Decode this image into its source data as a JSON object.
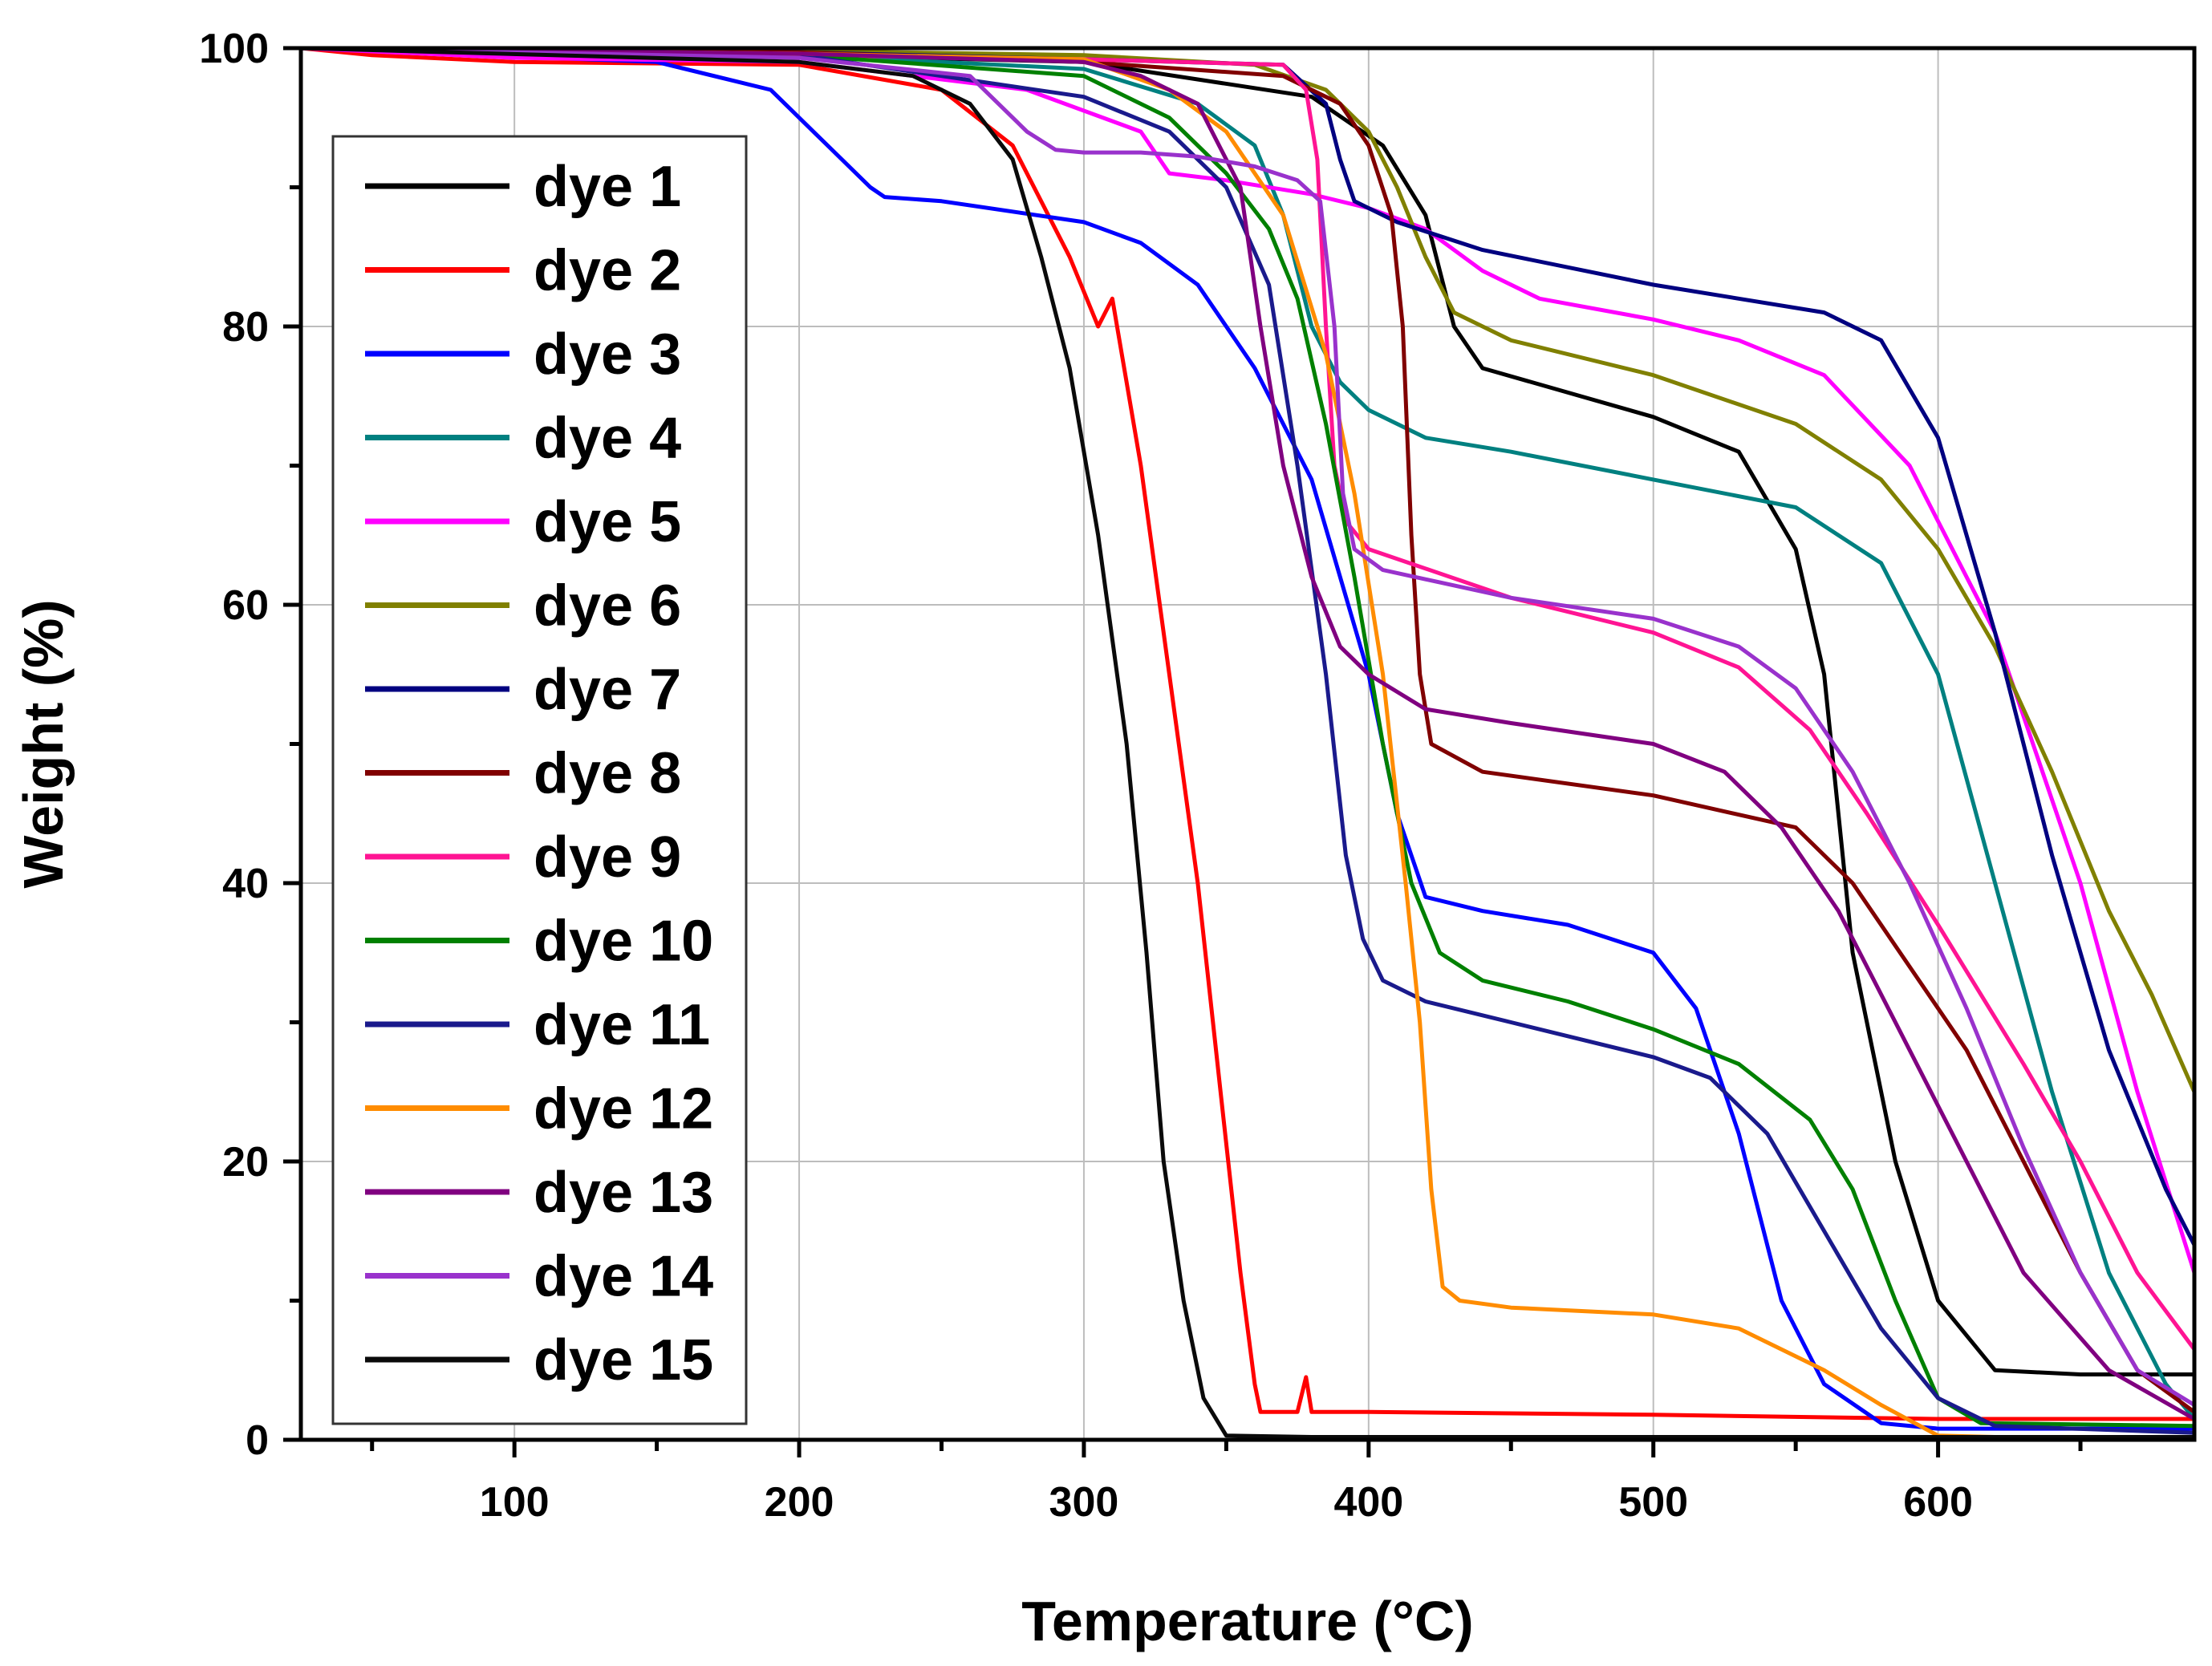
{
  "chart_data": {
    "type": "line",
    "title": "",
    "xlabel": "Temperature (°C)",
    "ylabel": "Weight (%)",
    "xlim": [
      25,
      690
    ],
    "ylim": [
      0,
      100
    ],
    "xticks": [
      100,
      200,
      300,
      400,
      500,
      600
    ],
    "yticks": [
      0,
      20,
      40,
      60,
      80,
      100
    ],
    "grid": true,
    "legend_position": "top-left",
    "series": [
      {
        "name": "dye 1",
        "color": "#000000",
        "points": [
          [
            25,
            100
          ],
          [
            200,
            99.5
          ],
          [
            300,
            99
          ],
          [
            380,
            96.5
          ],
          [
            405,
            93
          ],
          [
            420,
            88
          ],
          [
            430,
            80
          ],
          [
            440,
            77
          ],
          [
            500,
            73.5
          ],
          [
            530,
            71
          ],
          [
            550,
            64
          ],
          [
            560,
            55
          ],
          [
            570,
            35
          ],
          [
            585,
            20
          ],
          [
            600,
            10
          ],
          [
            620,
            5
          ],
          [
            650,
            4.7
          ],
          [
            690,
            4.7
          ]
        ]
      },
      {
        "name": "dye 2",
        "color": "#ff0000",
        "points": [
          [
            25,
            100
          ],
          [
            50,
            99.5
          ],
          [
            100,
            99
          ],
          [
            200,
            98.8
          ],
          [
            250,
            97
          ],
          [
            275,
            93
          ],
          [
            295,
            85
          ],
          [
            305,
            80
          ],
          [
            310,
            82
          ],
          [
            320,
            70
          ],
          [
            330,
            55
          ],
          [
            340,
            40
          ],
          [
            348,
            25
          ],
          [
            355,
            12
          ],
          [
            360,
            4
          ],
          [
            362,
            2
          ],
          [
            375,
            2
          ],
          [
            378,
            4.5
          ],
          [
            380,
            2
          ],
          [
            400,
            2
          ],
          [
            500,
            1.8
          ],
          [
            600,
            1.5
          ],
          [
            690,
            1.5
          ]
        ]
      },
      {
        "name": "dye 3",
        "color": "#0000ff",
        "points": [
          [
            25,
            100
          ],
          [
            150,
            99
          ],
          [
            190,
            97
          ],
          [
            210,
            93
          ],
          [
            225,
            90
          ],
          [
            230,
            89.3
          ],
          [
            250,
            89
          ],
          [
            300,
            87.5
          ],
          [
            320,
            86
          ],
          [
            340,
            83
          ],
          [
            360,
            77
          ],
          [
            380,
            69
          ],
          [
            400,
            55
          ],
          [
            410,
            45
          ],
          [
            420,
            39
          ],
          [
            440,
            38
          ],
          [
            470,
            37
          ],
          [
            500,
            35
          ],
          [
            515,
            31
          ],
          [
            530,
            22
          ],
          [
            545,
            10
          ],
          [
            560,
            4
          ],
          [
            580,
            1.2
          ],
          [
            600,
            0.8
          ],
          [
            690,
            0.8
          ]
        ]
      },
      {
        "name": "dye 4",
        "color": "#008080",
        "points": [
          [
            25,
            100
          ],
          [
            200,
            99.5
          ],
          [
            300,
            98.5
          ],
          [
            340,
            96
          ],
          [
            360,
            93
          ],
          [
            370,
            88
          ],
          [
            380,
            80
          ],
          [
            390,
            76
          ],
          [
            400,
            74
          ],
          [
            420,
            72
          ],
          [
            450,
            71
          ],
          [
            500,
            69
          ],
          [
            550,
            67
          ],
          [
            580,
            63
          ],
          [
            600,
            55
          ],
          [
            620,
            40
          ],
          [
            640,
            25
          ],
          [
            660,
            12
          ],
          [
            680,
            4
          ],
          [
            690,
            1.5
          ]
        ]
      },
      {
        "name": "dye 5",
        "color": "#ff00ff",
        "points": [
          [
            25,
            100
          ],
          [
            100,
            99.3
          ],
          [
            200,
            99
          ],
          [
            280,
            97
          ],
          [
            320,
            94
          ],
          [
            330,
            91
          ],
          [
            350,
            90.5
          ],
          [
            380,
            89.5
          ],
          [
            400,
            88.5
          ],
          [
            420,
            87
          ],
          [
            440,
            84
          ],
          [
            460,
            82
          ],
          [
            500,
            80.5
          ],
          [
            530,
            79
          ],
          [
            560,
            76.5
          ],
          [
            590,
            70
          ],
          [
            620,
            58
          ],
          [
            650,
            40
          ],
          [
            670,
            25
          ],
          [
            690,
            12
          ]
        ]
      },
      {
        "name": "dye 6",
        "color": "#808000",
        "points": [
          [
            25,
            100
          ],
          [
            200,
            99.8
          ],
          [
            300,
            99.5
          ],
          [
            360,
            98.8
          ],
          [
            385,
            97
          ],
          [
            400,
            94
          ],
          [
            410,
            90
          ],
          [
            420,
            85
          ],
          [
            430,
            81
          ],
          [
            450,
            79
          ],
          [
            500,
            76.5
          ],
          [
            550,
            73
          ],
          [
            580,
            69
          ],
          [
            600,
            64
          ],
          [
            620,
            57
          ],
          [
            640,
            48
          ],
          [
            660,
            38
          ],
          [
            675,
            32
          ],
          [
            690,
            25
          ]
        ]
      },
      {
        "name": "dye 7",
        "color": "#000080",
        "points": [
          [
            25,
            100
          ],
          [
            200,
            99.7
          ],
          [
            300,
            99.2
          ],
          [
            370,
            98.8
          ],
          [
            385,
            96
          ],
          [
            390,
            92
          ],
          [
            395,
            89
          ],
          [
            410,
            87.5
          ],
          [
            440,
            85.5
          ],
          [
            500,
            83
          ],
          [
            560,
            81
          ],
          [
            580,
            79
          ],
          [
            600,
            72
          ],
          [
            620,
            58
          ],
          [
            640,
            42
          ],
          [
            660,
            28
          ],
          [
            680,
            18
          ],
          [
            690,
            14
          ]
        ]
      },
      {
        "name": "dye 8",
        "color": "#800000",
        "points": [
          [
            25,
            100
          ],
          [
            200,
            99.7
          ],
          [
            300,
            99
          ],
          [
            370,
            98
          ],
          [
            390,
            96
          ],
          [
            400,
            93
          ],
          [
            408,
            88
          ],
          [
            412,
            80
          ],
          [
            415,
            65
          ],
          [
            418,
            55
          ],
          [
            422,
            50
          ],
          [
            440,
            48
          ],
          [
            500,
            46.3
          ],
          [
            550,
            44
          ],
          [
            570,
            40
          ],
          [
            590,
            34
          ],
          [
            610,
            28
          ],
          [
            630,
            20
          ],
          [
            650,
            12
          ],
          [
            670,
            5
          ],
          [
            690,
            2
          ]
        ]
      },
      {
        "name": "dye 9",
        "color": "#ff1493",
        "points": [
          [
            25,
            100
          ],
          [
            200,
            99.5
          ],
          [
            300,
            99.2
          ],
          [
            370,
            98.8
          ],
          [
            378,
            97
          ],
          [
            382,
            92
          ],
          [
            385,
            80
          ],
          [
            388,
            70
          ],
          [
            392,
            66
          ],
          [
            400,
            64
          ],
          [
            450,
            60.5
          ],
          [
            500,
            58
          ],
          [
            530,
            55.5
          ],
          [
            555,
            51
          ],
          [
            575,
            45
          ],
          [
            600,
            37
          ],
          [
            630,
            27
          ],
          [
            650,
            20
          ],
          [
            670,
            12
          ],
          [
            690,
            6.5
          ]
        ]
      },
      {
        "name": "dye 10",
        "color": "#008000",
        "points": [
          [
            25,
            100
          ],
          [
            200,
            99.5
          ],
          [
            300,
            98
          ],
          [
            330,
            95
          ],
          [
            350,
            91
          ],
          [
            365,
            87
          ],
          [
            375,
            82
          ],
          [
            385,
            73
          ],
          [
            395,
            62
          ],
          [
            405,
            50
          ],
          [
            415,
            40
          ],
          [
            425,
            35
          ],
          [
            440,
            33
          ],
          [
            470,
            31.5
          ],
          [
            500,
            29.5
          ],
          [
            530,
            27
          ],
          [
            555,
            23
          ],
          [
            570,
            18
          ],
          [
            585,
            10
          ],
          [
            600,
            3
          ],
          [
            615,
            1.2
          ],
          [
            690,
            1
          ]
        ]
      },
      {
        "name": "dye 11",
        "color": "#1a1a8c",
        "points": [
          [
            25,
            100
          ],
          [
            200,
            99.5
          ],
          [
            300,
            96.5
          ],
          [
            330,
            94
          ],
          [
            350,
            90
          ],
          [
            365,
            83
          ],
          [
            375,
            70
          ],
          [
            385,
            55
          ],
          [
            392,
            42
          ],
          [
            398,
            36
          ],
          [
            405,
            33
          ],
          [
            420,
            31.5
          ],
          [
            450,
            30
          ],
          [
            500,
            27.5
          ],
          [
            520,
            26
          ],
          [
            540,
            22
          ],
          [
            560,
            15
          ],
          [
            580,
            8
          ],
          [
            600,
            3
          ],
          [
            620,
            1
          ],
          [
            690,
            0.5
          ]
        ]
      },
      {
        "name": "dye 12",
        "color": "#ff8c00",
        "points": [
          [
            25,
            100
          ],
          [
            200,
            99.6
          ],
          [
            300,
            99.2
          ],
          [
            330,
            97
          ],
          [
            350,
            94
          ],
          [
            370,
            88
          ],
          [
            385,
            78
          ],
          [
            395,
            68
          ],
          [
            405,
            55
          ],
          [
            413,
            40
          ],
          [
            418,
            30
          ],
          [
            422,
            18
          ],
          [
            426,
            11
          ],
          [
            432,
            10
          ],
          [
            450,
            9.5
          ],
          [
            500,
            9
          ],
          [
            530,
            8
          ],
          [
            560,
            5
          ],
          [
            580,
            2.5
          ],
          [
            600,
            0.3
          ],
          [
            620,
            0.2
          ],
          [
            690,
            0.2
          ]
        ]
      },
      {
        "name": "dye 13",
        "color": "#800080",
        "points": [
          [
            25,
            100
          ],
          [
            200,
            99.6
          ],
          [
            300,
            99
          ],
          [
            320,
            98
          ],
          [
            340,
            96
          ],
          [
            355,
            90
          ],
          [
            362,
            80
          ],
          [
            370,
            70
          ],
          [
            380,
            62
          ],
          [
            390,
            57
          ],
          [
            400,
            55
          ],
          [
            420,
            52.5
          ],
          [
            450,
            51.5
          ],
          [
            500,
            50
          ],
          [
            525,
            48
          ],
          [
            545,
            44
          ],
          [
            565,
            38
          ],
          [
            585,
            30
          ],
          [
            605,
            22
          ],
          [
            630,
            12
          ],
          [
            660,
            5
          ],
          [
            690,
            1.5
          ]
        ]
      },
      {
        "name": "dye 14",
        "color": "#9932cc",
        "points": [
          [
            25,
            100
          ],
          [
            200,
            99.3
          ],
          [
            260,
            98
          ],
          [
            280,
            94
          ],
          [
            290,
            92.7
          ],
          [
            300,
            92.5
          ],
          [
            320,
            92.5
          ],
          [
            340,
            92.2
          ],
          [
            360,
            91.5
          ],
          [
            375,
            90.5
          ],
          [
            383,
            89
          ],
          [
            388,
            80
          ],
          [
            391,
            68
          ],
          [
            395,
            64
          ],
          [
            405,
            62.5
          ],
          [
            450,
            60.5
          ],
          [
            500,
            59
          ],
          [
            530,
            57
          ],
          [
            550,
            54
          ],
          [
            570,
            48
          ],
          [
            590,
            40
          ],
          [
            610,
            31
          ],
          [
            630,
            21
          ],
          [
            650,
            12
          ],
          [
            670,
            5
          ],
          [
            690,
            2.5
          ]
        ]
      },
      {
        "name": "dye 15",
        "color": "#0a0a0a",
        "points": [
          [
            25,
            100
          ],
          [
            200,
            99
          ],
          [
            240,
            98
          ],
          [
            260,
            96
          ],
          [
            275,
            92
          ],
          [
            285,
            85
          ],
          [
            295,
            77
          ],
          [
            305,
            65
          ],
          [
            315,
            50
          ],
          [
            322,
            35
          ],
          [
            328,
            20
          ],
          [
            335,
            10
          ],
          [
            342,
            3
          ],
          [
            350,
            0.3
          ],
          [
            380,
            0.2
          ],
          [
            690,
            0.2
          ]
        ]
      }
    ]
  }
}
